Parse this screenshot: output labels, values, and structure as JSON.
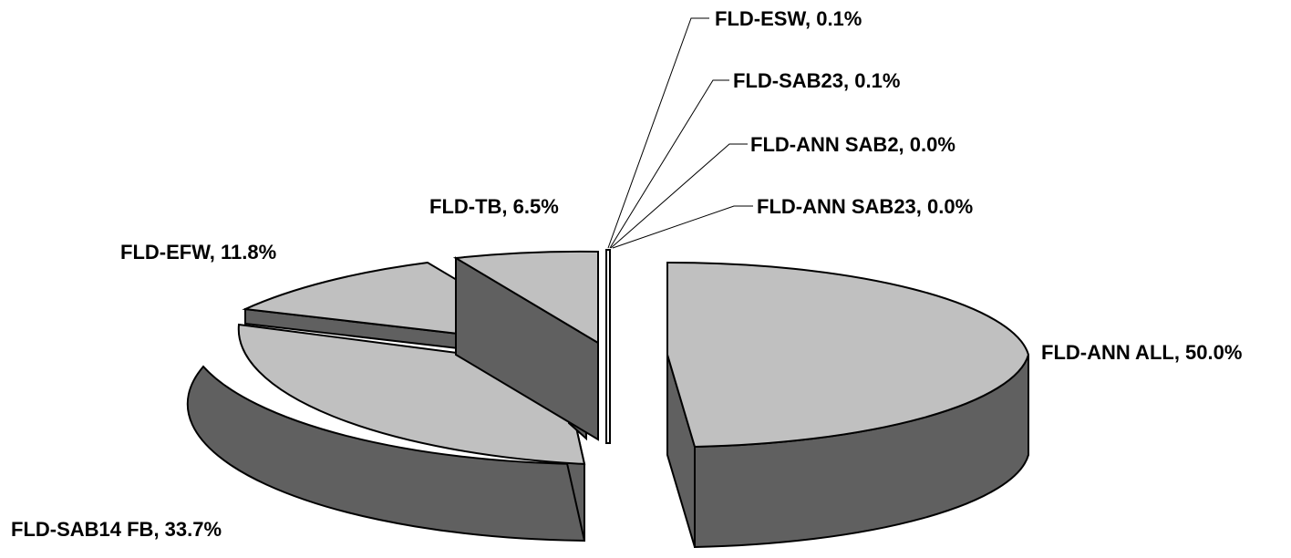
{
  "chart_data": {
    "type": "pie",
    "style": "3d-exploded",
    "slices": [
      {
        "category": "FLD-ANN ALL",
        "value": 50.0,
        "label": "FLD-ANN ALL, 50.0%"
      },
      {
        "category": "FLD-SAB14 FB",
        "value": 33.7,
        "label": "FLD-SAB14 FB, 33.7%"
      },
      {
        "category": "FLD-EFW",
        "value": 11.8,
        "label": "FLD-EFW, 11.8%"
      },
      {
        "category": "FLD-TB",
        "value": 6.5,
        "label": "FLD-TB, 6.5%"
      },
      {
        "category": "FLD-ESW",
        "value": 0.1,
        "label": "FLD-ESW, 0.1%"
      },
      {
        "category": "FLD-SAB23",
        "value": 0.1,
        "label": "FLD-SAB23, 0.1%"
      },
      {
        "category": "FLD-ANN SAB2",
        "value": 0.0,
        "label": "FLD-ANN SAB2, 0.0%"
      },
      {
        "category": "FLD-ANN SAB23",
        "value": 0.0,
        "label": "FLD-ANN SAB23, 0.0%"
      }
    ],
    "colors": {
      "top": "#c0c0c0",
      "side": "#606060",
      "edge": "#000000",
      "background": "#ffffff"
    }
  }
}
